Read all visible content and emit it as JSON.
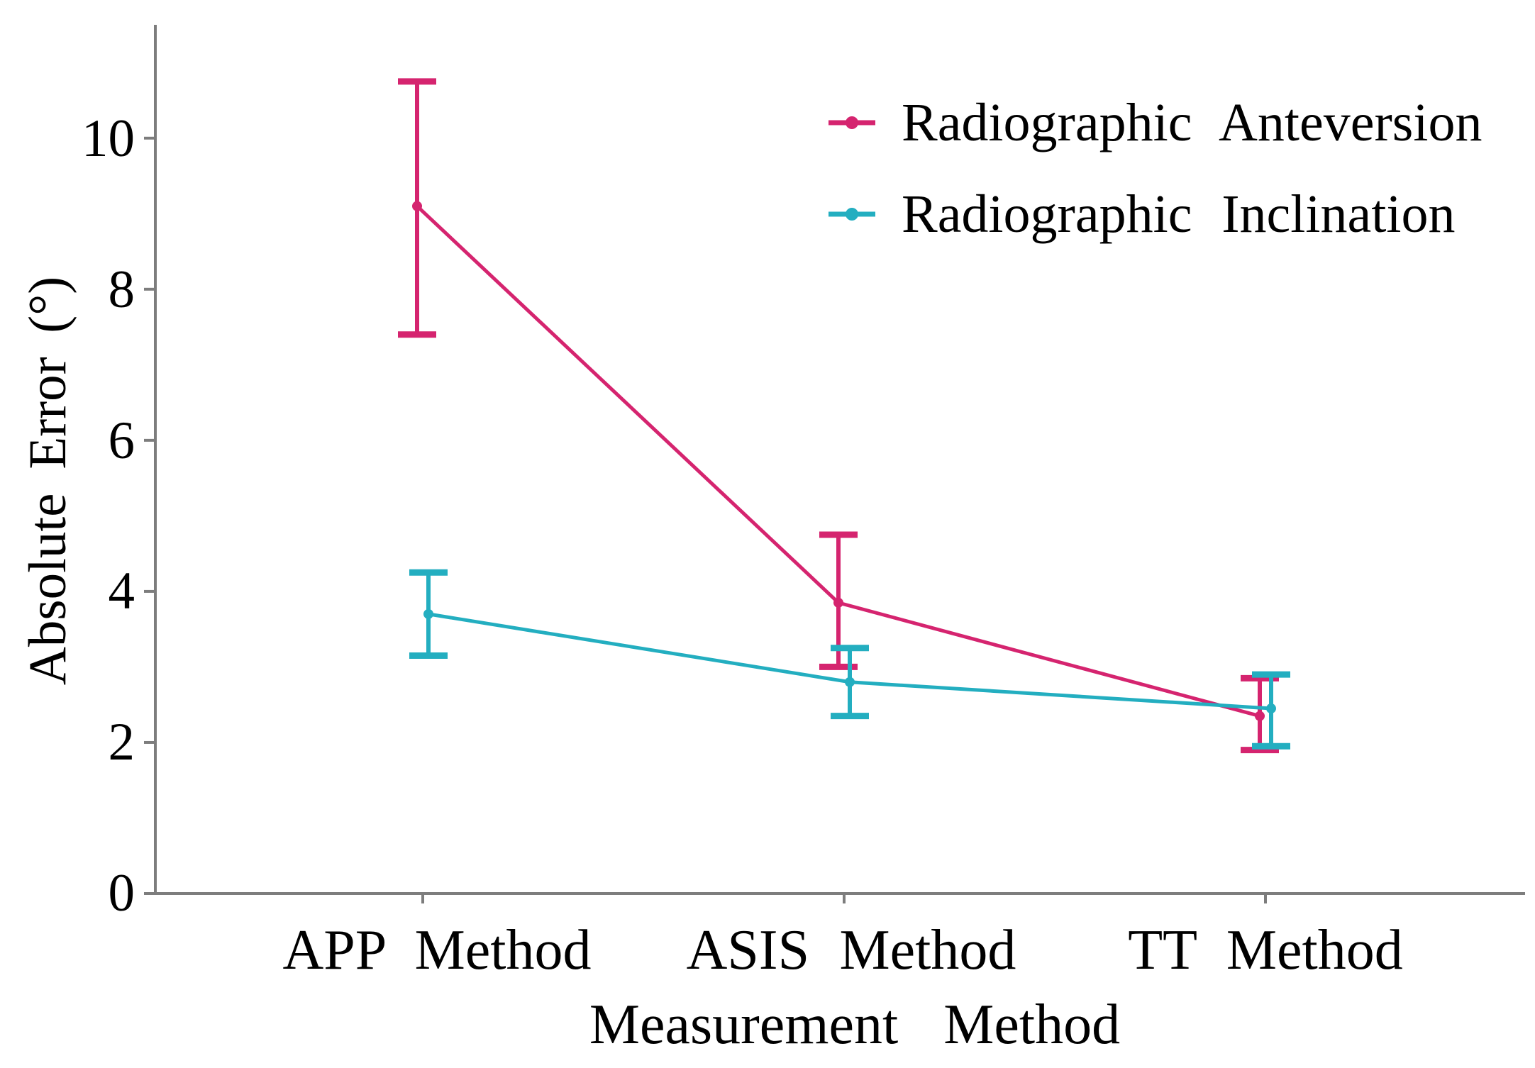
{
  "figure": {
    "background": "#ffffff",
    "axis_color": "#7d7d7d",
    "text_color": "#000000"
  },
  "chart_data": {
    "type": "line",
    "title": "",
    "xlabel": "Measurement Method",
    "ylabel": "Absolute Error (°)",
    "categories": [
      "APP Method",
      "ASIS Method",
      "TT Method"
    ],
    "yticks": [
      0,
      2,
      4,
      6,
      8,
      10
    ],
    "ylim": [
      0,
      11.5
    ],
    "grid": false,
    "legend_position": "upper right",
    "marker_style": "line with center dot",
    "error_bars": "caps at both ends",
    "series": [
      {
        "name": "Radiographic Anteversion",
        "color": "#d5246f",
        "values": [
          9.1,
          3.85,
          2.35
        ],
        "ci_low": [
          7.4,
          3.0,
          1.9
        ],
        "ci_high": [
          10.75,
          4.75,
          2.85
        ]
      },
      {
        "name": "Radiographic Inclination",
        "color": "#23aec0",
        "values": [
          3.7,
          2.8,
          2.45
        ],
        "ci_low": [
          3.15,
          2.35,
          1.95
        ],
        "ci_high": [
          4.25,
          3.25,
          2.9
        ]
      }
    ]
  }
}
